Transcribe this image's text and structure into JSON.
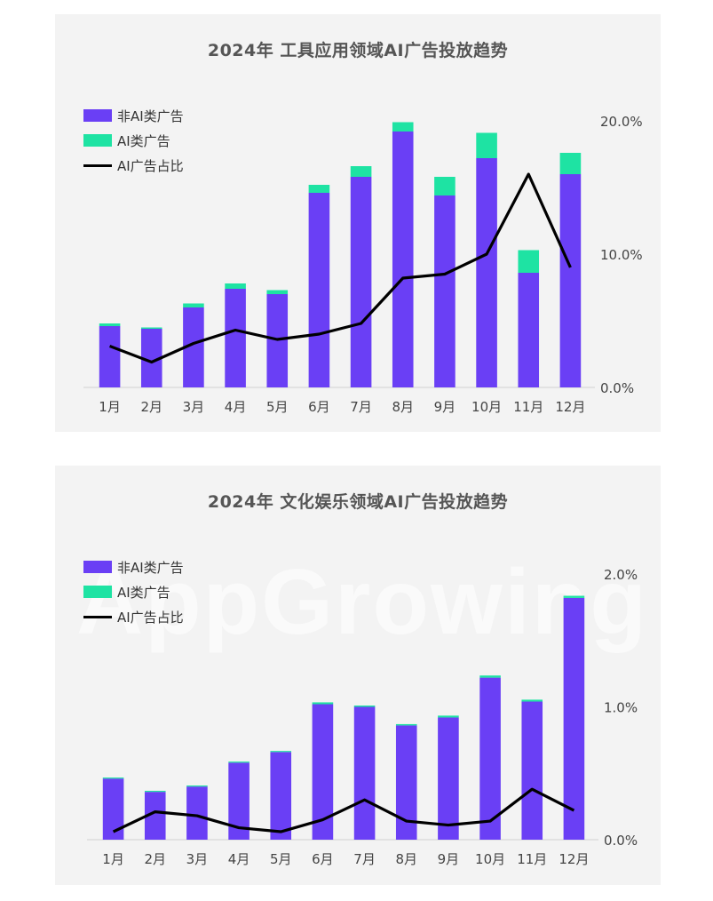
{
  "colors": {
    "non_ai": "#6a3ff5",
    "ai": "#1ee3a3",
    "ratio": "#000000",
    "axis": "#d0d0d0"
  },
  "watermark": "AppGrowing",
  "chart_data": [
    {
      "type": "bar",
      "title": "2024年  工具应用领域AI广告投放趋势",
      "categories": [
        "1月",
        "2月",
        "3月",
        "4月",
        "5月",
        "6月",
        "7月",
        "8月",
        "9月",
        "10月",
        "11月",
        "12月"
      ],
      "stacked": true,
      "ylim": [
        0,
        1.0
      ],
      "series": [
        {
          "name": "非AI类广告",
          "kind": "bar",
          "values": [
            0.23,
            0.22,
            0.3,
            0.37,
            0.35,
            0.73,
            0.79,
            0.96,
            0.72,
            0.86,
            0.43,
            0.8
          ]
        },
        {
          "name": "AI类广告",
          "kind": "bar",
          "values": [
            0.01,
            0.005,
            0.015,
            0.02,
            0.015,
            0.03,
            0.04,
            0.035,
            0.07,
            0.095,
            0.085,
            0.08
          ]
        },
        {
          "name": "AI广告占比",
          "kind": "line",
          "axis": "right",
          "values": [
            3.1,
            1.9,
            3.3,
            4.3,
            3.6,
            4.0,
            4.8,
            8.2,
            8.5,
            10.0,
            16.0,
            9.0
          ]
        }
      ],
      "y2_ticks": [
        "0.0%",
        "10.0%",
        "20.0%"
      ],
      "y2lim": [
        0,
        20
      ],
      "legend_position": "top-left"
    },
    {
      "type": "bar",
      "title": "2024年  文化娱乐领域AI广告投放趋势",
      "categories": [
        "1月",
        "2月",
        "3月",
        "4月",
        "5月",
        "6月",
        "7月",
        "8月",
        "9月",
        "10月",
        "11月",
        "12月"
      ],
      "stacked": true,
      "ylim": [
        0,
        1.0
      ],
      "series": [
        {
          "name": "非AI类广告",
          "kind": "bar",
          "values": [
            0.23,
            0.18,
            0.2,
            0.29,
            0.33,
            0.51,
            0.5,
            0.43,
            0.46,
            0.61,
            0.52,
            0.91
          ]
        },
        {
          "name": "AI类广告",
          "kind": "bar",
          "values": [
            0.004,
            0.004,
            0.004,
            0.004,
            0.004,
            0.007,
            0.005,
            0.005,
            0.007,
            0.008,
            0.007,
            0.008
          ]
        },
        {
          "name": "AI广告占比",
          "kind": "line",
          "axis": "right",
          "values": [
            0.06,
            0.21,
            0.18,
            0.09,
            0.06,
            0.15,
            0.3,
            0.14,
            0.11,
            0.14,
            0.38,
            0.22
          ]
        }
      ],
      "y2_ticks": [
        "0.0%",
        "1.0%",
        "2.0%"
      ],
      "y2lim": [
        0,
        2
      ],
      "legend_position": "top-left"
    }
  ]
}
